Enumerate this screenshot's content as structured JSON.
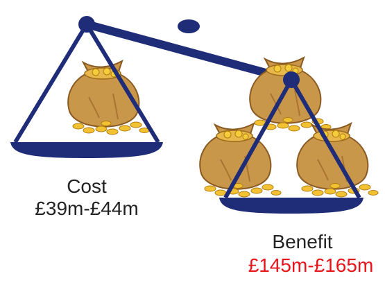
{
  "scale": {
    "left": {
      "label": "Cost",
      "value": "£39m-£44m"
    },
    "right": {
      "label": "Benefit",
      "value": "£145m-£165m"
    }
  }
}
